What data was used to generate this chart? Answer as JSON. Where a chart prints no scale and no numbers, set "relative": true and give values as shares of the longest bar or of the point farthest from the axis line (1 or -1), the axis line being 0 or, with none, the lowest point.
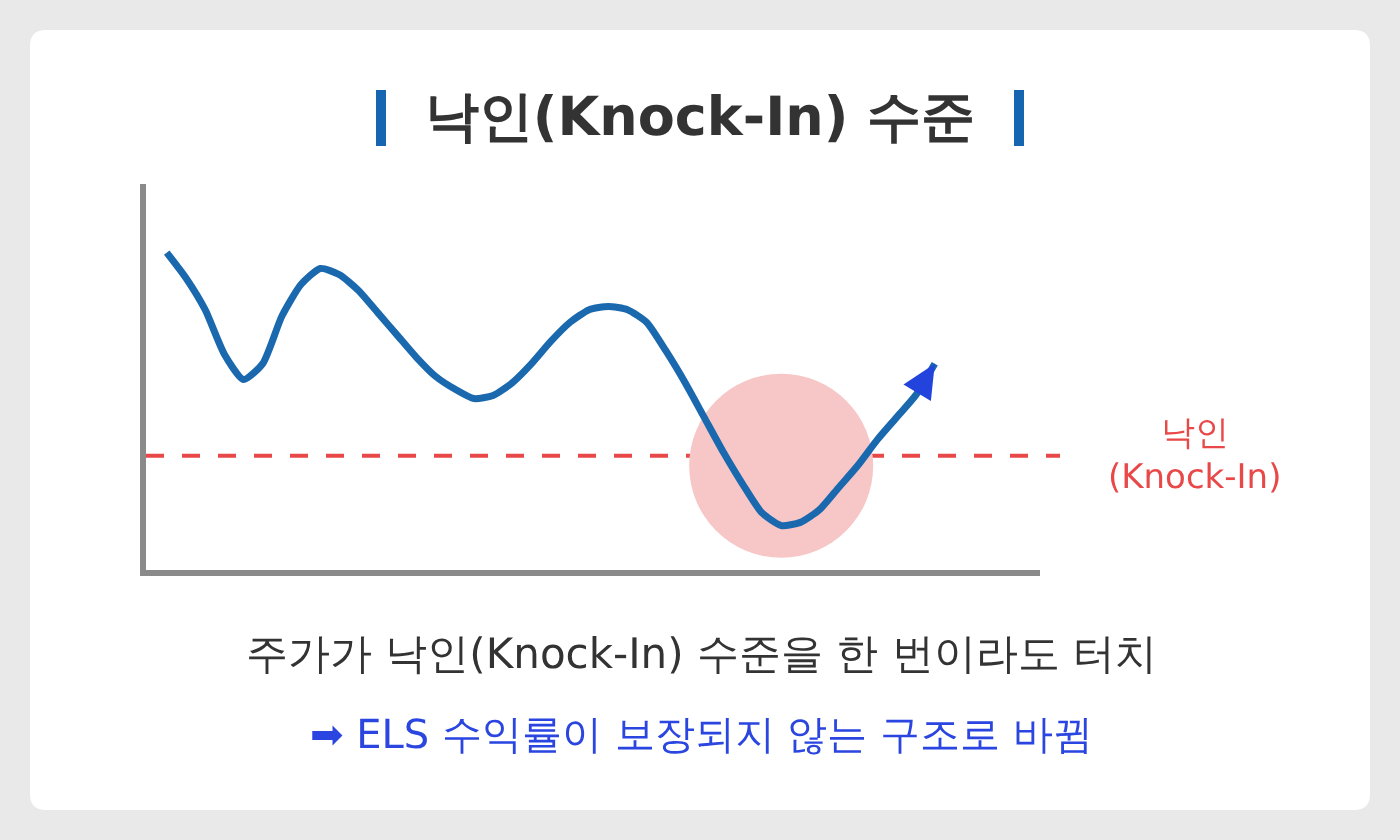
{
  "chart_data": {
    "type": "line",
    "title": "낙인(Knock-In) 수준",
    "relative": true,
    "categories": [
      null,
      null,
      null,
      null,
      null,
      null,
      null,
      null,
      null,
      null,
      null,
      null,
      null,
      null,
      null,
      null,
      null,
      null,
      null,
      null,
      null,
      null,
      null,
      null,
      null,
      null,
      null,
      null,
      null,
      null,
      null,
      null,
      null,
      null,
      null,
      null,
      null,
      null,
      null,
      null,
      null
    ],
    "series": [
      {
        "color": "#1a68ad",
        "values": [
          1.0,
          0.92,
          0.82,
          0.68,
          0.6,
          0.65,
          0.8,
          0.9,
          0.95,
          0.93,
          0.88,
          0.81,
          0.74,
          0.67,
          0.61,
          0.57,
          0.54,
          0.55,
          0.59,
          0.65,
          0.72,
          0.78,
          0.82,
          0.83,
          0.82,
          0.78,
          0.69,
          0.59,
          0.48,
          0.37,
          0.27,
          0.18,
          0.14,
          0.15,
          0.19,
          0.26,
          0.33,
          0.41,
          0.48,
          0.55,
          0.65
        ]
      }
    ],
    "ref_lines": [
      {
        "axis": "y",
        "value": 0.36,
        "label": "낙인\n(Knock-In)",
        "color": "#e84848",
        "line_style": "dashed"
      }
    ],
    "annotations": [
      "주가가 낙인(Knock-In) 수준을 한 번이라도 터치",
      "➡ ELS 수익률이 보장되지 않는 구조로 바뀜"
    ],
    "grid": false,
    "legend": false,
    "line_style": "solid"
  }
}
